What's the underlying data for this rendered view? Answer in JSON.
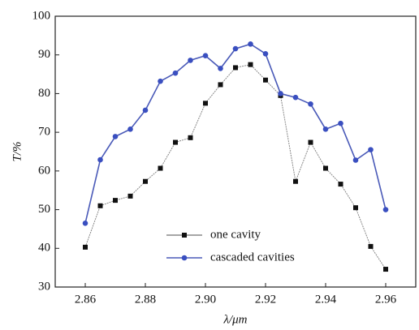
{
  "chart_data": {
    "type": "line",
    "xlabel": "λ/μm",
    "ylabel": "T/%",
    "x": [
      2.86,
      2.865,
      2.87,
      2.875,
      2.88,
      2.885,
      2.89,
      2.895,
      2.9,
      2.905,
      2.91,
      2.915,
      2.92,
      2.925,
      2.93,
      2.935,
      2.94,
      2.945,
      2.95,
      2.955,
      2.96
    ],
    "series": [
      {
        "name": "one cavity",
        "color": "#111111",
        "line_color": "#888888",
        "marker": "square",
        "values": [
          40.3,
          51,
          52.4,
          53.5,
          57.3,
          60.7,
          67.4,
          68.6,
          77.5,
          82.3,
          86.7,
          87.5,
          83.5,
          79.5,
          57.3,
          67.4,
          60.7,
          56.6,
          50.5,
          40.5,
          34.6
        ]
      },
      {
        "name": "cascaded cavities",
        "color": "#3a4fc0",
        "line_color": "#4a5ab8",
        "marker": "circle",
        "values": [
          46.5,
          62.9,
          68.9,
          70.8,
          75.7,
          83.2,
          85.3,
          88.6,
          89.8,
          86.5,
          91.6,
          92.8,
          90.3,
          80,
          79,
          77.3,
          70.8,
          72.3,
          62.8,
          65.5,
          50
        ]
      }
    ],
    "xlim": [
      2.85,
      2.97
    ],
    "xticks": [
      2.86,
      2.88,
      {
        "value": 2.9,
        "label": "2.90"
      },
      2.92,
      2.94,
      2.96
    ],
    "ylim": [
      30,
      100
    ],
    "yticks": [
      30,
      40,
      50,
      60,
      70,
      80,
      90,
      100
    ],
    "legend": "lower center"
  }
}
